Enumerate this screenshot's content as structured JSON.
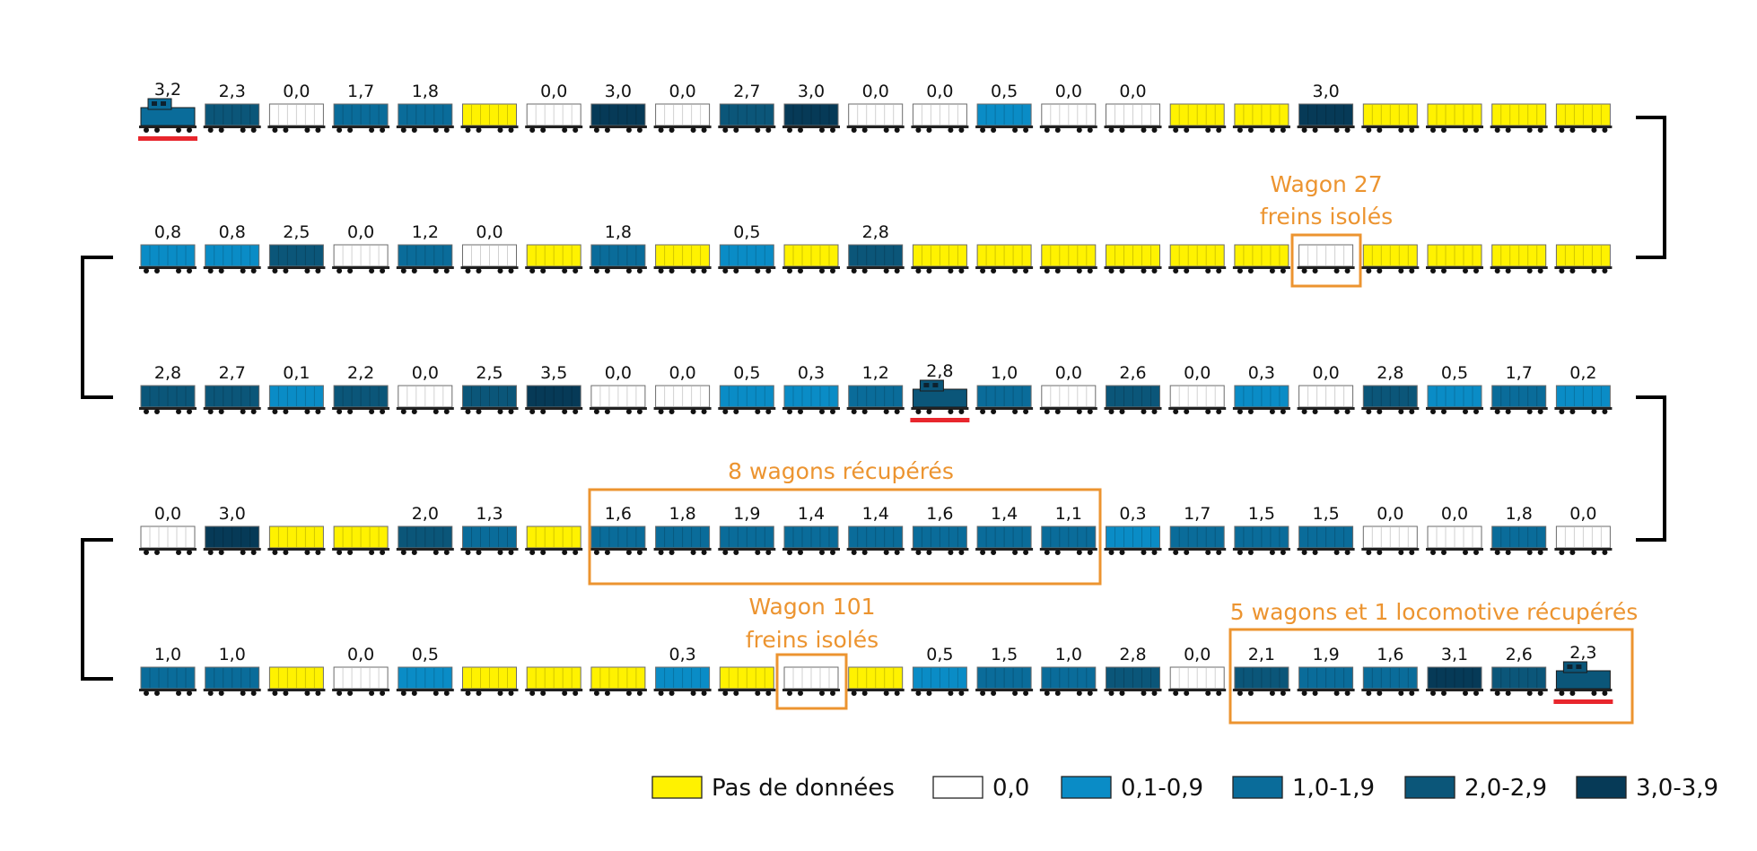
{
  "colors": {
    "no_data": "#fff200",
    "zero": "#ffffff",
    "low": "#0a8cc6",
    "mid": "#0a6c9a",
    "high": "#0b5679",
    "max": "#063a57",
    "annotation": "#ec9430",
    "rail_marker": "#e8262d"
  },
  "rows": [
    {
      "cars": [
        {
          "k": "loco",
          "v": "3,2",
          "c": "mid"
        },
        {
          "k": "wagon",
          "v": "2,3",
          "c": "high"
        },
        {
          "k": "wagon",
          "v": "0,0",
          "c": "zero"
        },
        {
          "k": "wagon",
          "v": "1,7",
          "c": "mid"
        },
        {
          "k": "wagon",
          "v": "1,8",
          "c": "mid"
        },
        {
          "k": "wagon",
          "v": "",
          "c": "no_data"
        },
        {
          "k": "wagon",
          "v": "0,0",
          "c": "zero"
        },
        {
          "k": "wagon",
          "v": "3,0",
          "c": "max"
        },
        {
          "k": "wagon",
          "v": "0,0",
          "c": "zero"
        },
        {
          "k": "wagon",
          "v": "2,7",
          "c": "high"
        },
        {
          "k": "wagon",
          "v": "3,0",
          "c": "max"
        },
        {
          "k": "wagon",
          "v": "0,0",
          "c": "zero"
        },
        {
          "k": "wagon",
          "v": "0,0",
          "c": "zero"
        },
        {
          "k": "wagon",
          "v": "0,5",
          "c": "low"
        },
        {
          "k": "wagon",
          "v": "0,0",
          "c": "zero"
        },
        {
          "k": "wagon",
          "v": "0,0",
          "c": "zero"
        },
        {
          "k": "wagon",
          "v": "",
          "c": "no_data"
        },
        {
          "k": "wagon",
          "v": "",
          "c": "no_data"
        },
        {
          "k": "wagon",
          "v": "3,0",
          "c": "max"
        },
        {
          "k": "wagon",
          "v": "",
          "c": "no_data"
        },
        {
          "k": "wagon",
          "v": "",
          "c": "no_data"
        },
        {
          "k": "wagon",
          "v": "",
          "c": "no_data"
        },
        {
          "k": "wagon",
          "v": "",
          "c": "no_data"
        }
      ]
    },
    {
      "cars": [
        {
          "k": "wagon",
          "v": "0,8",
          "c": "low"
        },
        {
          "k": "wagon",
          "v": "0,8",
          "c": "low"
        },
        {
          "k": "wagon",
          "v": "2,5",
          "c": "high"
        },
        {
          "k": "wagon",
          "v": "0,0",
          "c": "zero"
        },
        {
          "k": "wagon",
          "v": "1,2",
          "c": "mid"
        },
        {
          "k": "wagon",
          "v": "0,0",
          "c": "zero"
        },
        {
          "k": "wagon",
          "v": "",
          "c": "no_data"
        },
        {
          "k": "wagon",
          "v": "1,8",
          "c": "mid"
        },
        {
          "k": "wagon",
          "v": "",
          "c": "no_data"
        },
        {
          "k": "wagon",
          "v": "0,5",
          "c": "low"
        },
        {
          "k": "wagon",
          "v": "",
          "c": "no_data"
        },
        {
          "k": "wagon",
          "v": "2,8",
          "c": "high"
        },
        {
          "k": "wagon",
          "v": "",
          "c": "no_data"
        },
        {
          "k": "wagon",
          "v": "",
          "c": "no_data"
        },
        {
          "k": "wagon",
          "v": "",
          "c": "no_data"
        },
        {
          "k": "wagon",
          "v": "",
          "c": "no_data"
        },
        {
          "k": "wagon",
          "v": "",
          "c": "no_data"
        },
        {
          "k": "wagon",
          "v": "",
          "c": "no_data"
        },
        {
          "k": "wagon",
          "v": "",
          "c": "zero"
        },
        {
          "k": "wagon",
          "v": "",
          "c": "no_data"
        },
        {
          "k": "wagon",
          "v": "",
          "c": "no_data"
        },
        {
          "k": "wagon",
          "v": "",
          "c": "no_data"
        },
        {
          "k": "wagon",
          "v": "",
          "c": "no_data"
        }
      ]
    },
    {
      "cars": [
        {
          "k": "wagon",
          "v": "2,8",
          "c": "high"
        },
        {
          "k": "wagon",
          "v": "2,7",
          "c": "high"
        },
        {
          "k": "wagon",
          "v": "0,1",
          "c": "low"
        },
        {
          "k": "wagon",
          "v": "2,2",
          "c": "high"
        },
        {
          "k": "wagon",
          "v": "0,0",
          "c": "zero"
        },
        {
          "k": "wagon",
          "v": "2,5",
          "c": "high"
        },
        {
          "k": "wagon",
          "v": "3,5",
          "c": "max"
        },
        {
          "k": "wagon",
          "v": "0,0",
          "c": "zero"
        },
        {
          "k": "wagon",
          "v": "0,0",
          "c": "zero"
        },
        {
          "k": "wagon",
          "v": "0,5",
          "c": "low"
        },
        {
          "k": "wagon",
          "v": "0,3",
          "c": "low"
        },
        {
          "k": "wagon",
          "v": "1,2",
          "c": "mid"
        },
        {
          "k": "loco",
          "v": "2,8",
          "c": "high"
        },
        {
          "k": "wagon",
          "v": "1,0",
          "c": "mid"
        },
        {
          "k": "wagon",
          "v": "0,0",
          "c": "zero"
        },
        {
          "k": "wagon",
          "v": "2,6",
          "c": "high"
        },
        {
          "k": "wagon",
          "v": "0,0",
          "c": "zero"
        },
        {
          "k": "wagon",
          "v": "0,3",
          "c": "low"
        },
        {
          "k": "wagon",
          "v": "0,0",
          "c": "zero"
        },
        {
          "k": "wagon",
          "v": "2,8",
          "c": "high"
        },
        {
          "k": "wagon",
          "v": "0,5",
          "c": "low"
        },
        {
          "k": "wagon",
          "v": "1,7",
          "c": "mid"
        },
        {
          "k": "wagon",
          "v": "0,2",
          "c": "low"
        }
      ]
    },
    {
      "cars": [
        {
          "k": "wagon",
          "v": "0,0",
          "c": "zero"
        },
        {
          "k": "wagon",
          "v": "3,0",
          "c": "max"
        },
        {
          "k": "wagon",
          "v": "",
          "c": "no_data"
        },
        {
          "k": "wagon",
          "v": "",
          "c": "no_data"
        },
        {
          "k": "wagon",
          "v": "2,0",
          "c": "high"
        },
        {
          "k": "wagon",
          "v": "1,3",
          "c": "mid"
        },
        {
          "k": "wagon",
          "v": "",
          "c": "no_data"
        },
        {
          "k": "wagon",
          "v": "1,6",
          "c": "mid"
        },
        {
          "k": "wagon",
          "v": "1,8",
          "c": "mid"
        },
        {
          "k": "wagon",
          "v": "1,9",
          "c": "mid"
        },
        {
          "k": "wagon",
          "v": "1,4",
          "c": "mid"
        },
        {
          "k": "wagon",
          "v": "1,4",
          "c": "mid"
        },
        {
          "k": "wagon",
          "v": "1,6",
          "c": "mid"
        },
        {
          "k": "wagon",
          "v": "1,4",
          "c": "mid"
        },
        {
          "k": "wagon",
          "v": "1,1",
          "c": "mid"
        },
        {
          "k": "wagon",
          "v": "0,3",
          "c": "low"
        },
        {
          "k": "wagon",
          "v": "1,7",
          "c": "mid"
        },
        {
          "k": "wagon",
          "v": "1,5",
          "c": "mid"
        },
        {
          "k": "wagon",
          "v": "1,5",
          "c": "mid"
        },
        {
          "k": "wagon",
          "v": "0,0",
          "c": "zero"
        },
        {
          "k": "wagon",
          "v": "0,0",
          "c": "zero"
        },
        {
          "k": "wagon",
          "v": "1,8",
          "c": "mid"
        },
        {
          "k": "wagon",
          "v": "0,0",
          "c": "zero"
        }
      ]
    },
    {
      "cars": [
        {
          "k": "wagon",
          "v": "1,0",
          "c": "mid"
        },
        {
          "k": "wagon",
          "v": "1,0",
          "c": "mid"
        },
        {
          "k": "wagon",
          "v": "",
          "c": "no_data"
        },
        {
          "k": "wagon",
          "v": "0,0",
          "c": "zero"
        },
        {
          "k": "wagon",
          "v": "0,5",
          "c": "low"
        },
        {
          "k": "wagon",
          "v": "",
          "c": "no_data"
        },
        {
          "k": "wagon",
          "v": "",
          "c": "no_data"
        },
        {
          "k": "wagon",
          "v": "",
          "c": "no_data"
        },
        {
          "k": "wagon",
          "v": "0,3",
          "c": "low"
        },
        {
          "k": "wagon",
          "v": "",
          "c": "no_data"
        },
        {
          "k": "wagon",
          "v": "",
          "c": "zero"
        },
        {
          "k": "wagon",
          "v": "",
          "c": "no_data"
        },
        {
          "k": "wagon",
          "v": "0,5",
          "c": "low"
        },
        {
          "k": "wagon",
          "v": "1,5",
          "c": "mid"
        },
        {
          "k": "wagon",
          "v": "1,0",
          "c": "mid"
        },
        {
          "k": "wagon",
          "v": "2,8",
          "c": "high"
        },
        {
          "k": "wagon",
          "v": "0,0",
          "c": "zero"
        },
        {
          "k": "wagon",
          "v": "2,1",
          "c": "high"
        },
        {
          "k": "wagon",
          "v": "1,9",
          "c": "mid"
        },
        {
          "k": "wagon",
          "v": "1,6",
          "c": "mid"
        },
        {
          "k": "wagon",
          "v": "3,1",
          "c": "max"
        },
        {
          "k": "wagon",
          "v": "2,6",
          "c": "high"
        },
        {
          "k": "loco",
          "v": "2,3",
          "c": "high"
        }
      ]
    }
  ],
  "annotations": {
    "wagon27": {
      "line1": "Wagon 27",
      "line2": "freins isolés"
    },
    "recovered8": {
      "label": "8 wagons récupérés"
    },
    "wagon101": {
      "line1": "Wagon 101",
      "line2": "freins isolés"
    },
    "recovered5": {
      "label": "5 wagons et 1 locomotive récupérés"
    }
  },
  "legend": [
    {
      "label": "Pas de données",
      "c": "no_data"
    },
    {
      "label": "0,0",
      "c": "zero"
    },
    {
      "label": "0,1-0,9",
      "c": "low"
    },
    {
      "label": "1,0-1,9",
      "c": "mid"
    },
    {
      "label": "2,0-2,9",
      "c": "high"
    },
    {
      "label": "3,0-3,9",
      "c": "max"
    }
  ]
}
